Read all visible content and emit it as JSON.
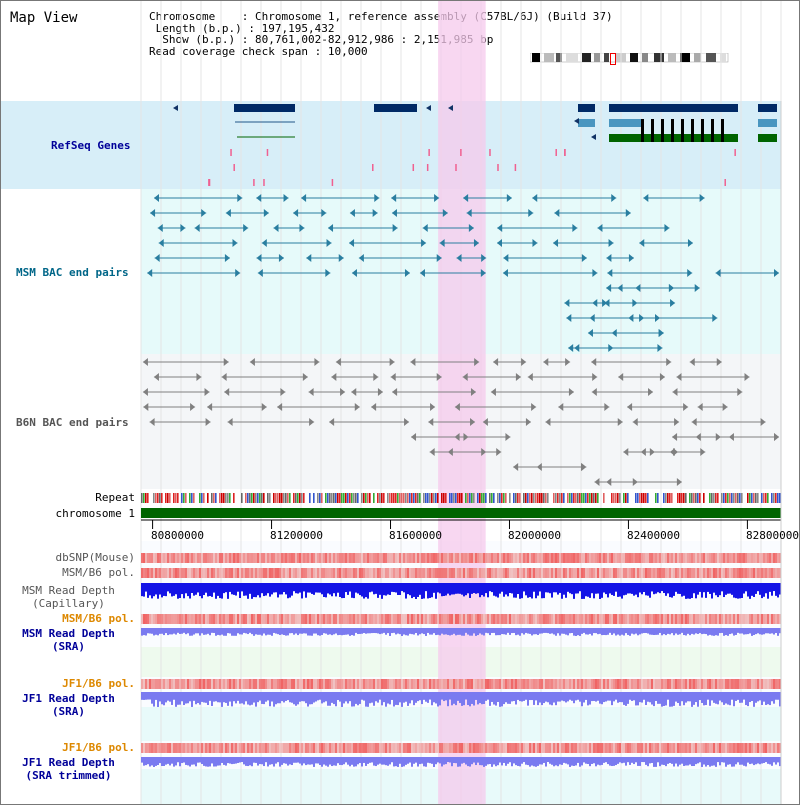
{
  "view": {
    "title": "Map View",
    "info": {
      "chromosome_label": "Chromosome",
      "chromosome_value": "Chromosome 1, reference assembly (C57BL/6J) (Build 37)",
      "length_label": "Length (b.p.)",
      "length_value": "197,195,432",
      "show_label": "Show (b.p.)",
      "show_value": "80,761,002-82,912,986 : 2,151,985 bp",
      "coverage_label": "Read coverage check span",
      "coverage_value": "10,000"
    },
    "range": [
      80761002,
      82912986
    ],
    "highlight_range": [
      81760000,
      81920000
    ]
  },
  "tracks": {
    "refseq": "RefSeq Genes",
    "msm_bac": "MSM BAC end pairs",
    "b6n_bac": "B6N BAC end pairs",
    "repeat": "Repeat",
    "chromosome": "chromosome 1",
    "dbsnp": "dbSNP(Mouse)",
    "msm_pol1": "MSM/B6 pol.",
    "msm_depth_cap": "MSM Read Depth\n(Capillary)",
    "msm_pol2": "MSM/B6 pol.",
    "msm_depth_sra": "MSM Read Depth\n(SRA)",
    "jf1_pol1": "JF1/B6 pol.",
    "jf1_depth_sra": "JF1 Read Depth\n(SRA)",
    "jf1_pol2": "JF1/B6 pol.",
    "jf1_depth_trim": "JF1 Read Depth\n(SRA trimmed)"
  },
  "axis": {
    "ticks": [
      "80800000",
      "81200000",
      "81600000",
      "82000000",
      "82400000",
      "82800000"
    ]
  },
  "colors": {
    "label_blue": "#000099",
    "label_teal": "#006688",
    "label_gray": "#555555",
    "label_orange": "#dd8800",
    "refseq_bg": "#d7eef8",
    "msm_bg": "#e6fafa",
    "b6n_bg": "#f4f6f8",
    "highlight": "#f6c9ec",
    "gene_dark": "#002a66",
    "gene_mid": "#4a96c0",
    "gene_green": "#006400",
    "depth_blue": "#1414e6",
    "depth_light": "#7a7af0"
  }
}
